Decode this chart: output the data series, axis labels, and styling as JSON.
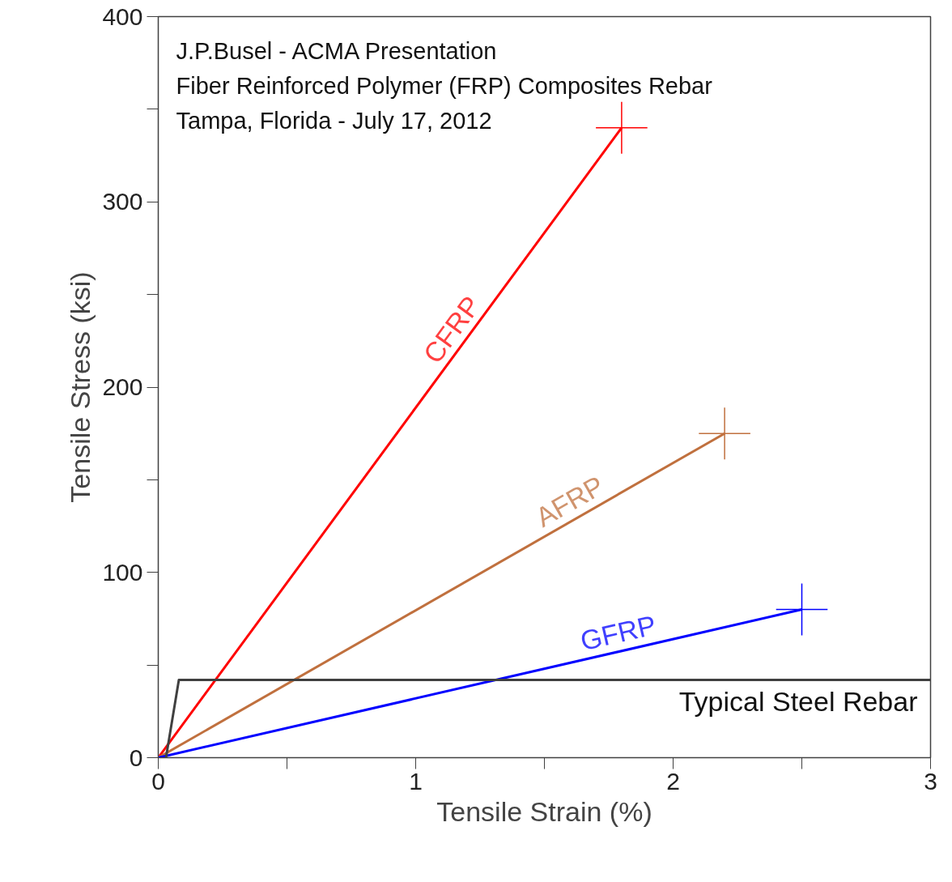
{
  "chart_data": {
    "type": "line",
    "xlabel": "Tensile Strain (%)",
    "ylabel": "Tensile Stress (ksi)",
    "annotations": [
      "J.P.Busel - ACMA Presentation",
      "Fiber Reinforced Polymer (FRP) Composites Rebar",
      "Tampa, Florida - July 17, 2012"
    ],
    "xlim": [
      0,
      3
    ],
    "ylim": [
      0,
      400
    ],
    "xticks": [
      0,
      {
        "value": 0.5,
        "label": null
      },
      1,
      {
        "value": 1.5,
        "label": null
      },
      2,
      {
        "value": 2.5,
        "label": null
      },
      3
    ],
    "yticks": [
      0,
      {
        "value": 50,
        "label": null
      },
      100,
      {
        "value": 150,
        "label": null
      },
      200,
      {
        "value": 250,
        "label": null
      },
      300,
      {
        "value": 350,
        "label": null
      },
      400
    ],
    "grid": false,
    "line_style": "solid",
    "series": [
      {
        "name": "CFRP",
        "color": "#ff0000",
        "x": [
          0,
          1.8
        ],
        "values": [
          0,
          340
        ],
        "errors": [
          null,
          14
        ],
        "xerrors": [
          null,
          0.1
        ]
      },
      {
        "name": "AFRP",
        "color": "#c0703e",
        "x": [
          0,
          2.2
        ],
        "values": [
          0,
          175
        ],
        "errors": [
          null,
          14
        ],
        "xerrors": [
          null,
          0.1
        ]
      },
      {
        "name": "GFRP",
        "color": "#0000ff",
        "x": [
          0,
          2.5
        ],
        "values": [
          0,
          80
        ],
        "errors": [
          null,
          14
        ],
        "xerrors": [
          null,
          0.1
        ]
      },
      {
        "name": "Typical Steel Rebar",
        "color": "#404040",
        "x": [
          0.03,
          0.08,
          3
        ],
        "values": [
          0,
          42,
          42
        ]
      }
    ]
  }
}
